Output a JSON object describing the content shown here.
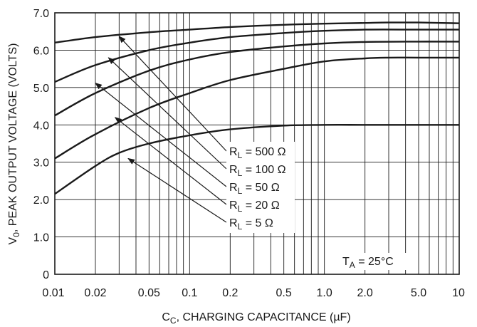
{
  "chart_data": {
    "type": "line",
    "x_scale": "log",
    "xlim": [
      0.01,
      10
    ],
    "ylim": [
      0,
      7.0
    ],
    "grid": true,
    "xlabel_main": "C",
    "xlabel_sub": "C",
    "xlabel_rest": ", CHARGING CAPACITANCE (µF)",
    "ylabel_main": "V",
    "ylabel_sub": "0",
    "ylabel_rest": ", PEAK OUTPUT VOLTAGE (VOLTS)",
    "x_ticks": [
      {
        "v": 0.01,
        "label": "0.01"
      },
      {
        "v": 0.02,
        "label": "0.02"
      },
      {
        "v": 0.05,
        "label": "0.05"
      },
      {
        "v": 0.1,
        "label": "0.1"
      },
      {
        "v": 0.2,
        "label": "0.2"
      },
      {
        "v": 0.5,
        "label": "0.5"
      },
      {
        "v": 1.0,
        "label": "1.0"
      },
      {
        "v": 2.0,
        "label": "2.0"
      },
      {
        "v": 5.0,
        "label": "5.0"
      },
      {
        "v": 10,
        "label": "10"
      }
    ],
    "y_ticks": [
      {
        "v": 0,
        "label": "0"
      },
      {
        "v": 1.0,
        "label": "1.0"
      },
      {
        "v": 2.0,
        "label": "2.0"
      },
      {
        "v": 3.0,
        "label": "3.0"
      },
      {
        "v": 4.0,
        "label": "4.0"
      },
      {
        "v": 5.0,
        "label": "5.0"
      },
      {
        "v": 6.0,
        "label": "6.0"
      },
      {
        "v": 7.0,
        "label": "7.0"
      }
    ],
    "series": [
      {
        "name_main": "R",
        "name_sub": "L",
        "name_rest": " = 500 Ω",
        "x": [
          0.01,
          0.02,
          0.05,
          0.1,
          0.2,
          0.5,
          1.0,
          2.0,
          3.0,
          5.0,
          10
        ],
        "y": [
          6.2,
          6.35,
          6.48,
          6.55,
          6.62,
          6.68,
          6.71,
          6.73,
          6.74,
          6.74,
          6.72
        ]
      },
      {
        "name_main": "R",
        "name_sub": "L",
        "name_rest": " = 100 Ω",
        "x": [
          0.01,
          0.02,
          0.05,
          0.1,
          0.2,
          0.5,
          1.0,
          2.0,
          5.0,
          10
        ],
        "y": [
          5.15,
          5.6,
          6.0,
          6.2,
          6.35,
          6.46,
          6.52,
          6.55,
          6.55,
          6.55
        ]
      },
      {
        "name_main": "R",
        "name_sub": "L",
        "name_rest": " = 50 Ω",
        "x": [
          0.01,
          0.02,
          0.05,
          0.1,
          0.2,
          0.5,
          1.0,
          2.0,
          5.0,
          10
        ],
        "y": [
          4.25,
          4.85,
          5.45,
          5.75,
          5.95,
          6.1,
          6.18,
          6.22,
          6.23,
          6.23
        ]
      },
      {
        "name_main": "R",
        "name_sub": "L",
        "name_rest": " = 20 Ω",
        "x": [
          0.01,
          0.02,
          0.05,
          0.1,
          0.2,
          0.5,
          1.0,
          2.0,
          3.0,
          5.0,
          10
        ],
        "y": [
          3.1,
          3.75,
          4.45,
          4.85,
          5.2,
          5.5,
          5.7,
          5.78,
          5.8,
          5.8,
          5.8
        ]
      },
      {
        "name_main": "R",
        "name_sub": "L",
        "name_rest": " = 5 Ω",
        "x": [
          0.01,
          0.02,
          0.03,
          0.05,
          0.1,
          0.2,
          0.5,
          1.0,
          2.0,
          5.0,
          10
        ],
        "y": [
          2.15,
          2.9,
          3.25,
          3.5,
          3.72,
          3.88,
          3.98,
          4.0,
          4.0,
          4.0,
          4.0
        ]
      }
    ],
    "arrow_tips": [
      {
        "x": 0.03,
        "y": 6.37
      },
      {
        "x": 0.025,
        "y": 5.8
      },
      {
        "x": 0.02,
        "y": 5.12
      },
      {
        "x": 0.028,
        "y": 4.2
      },
      {
        "x": 0.035,
        "y": 3.1
      }
    ],
    "annotation_main": "T",
    "annotation_sub": "A",
    "annotation_rest": " = 25°C"
  }
}
